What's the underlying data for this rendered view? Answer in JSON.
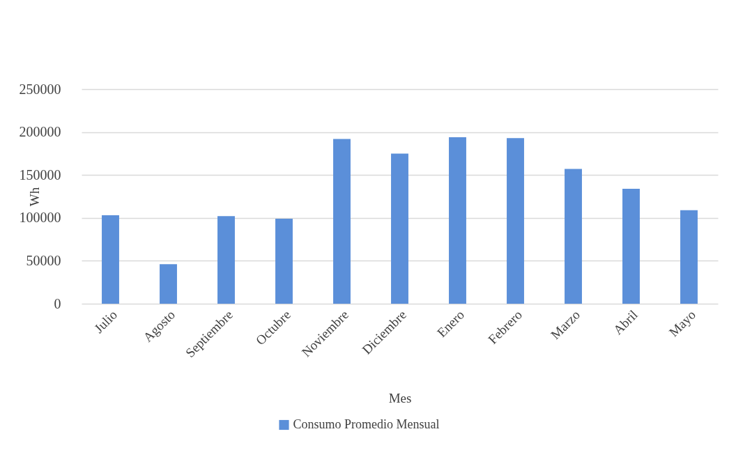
{
  "chart_data": {
    "type": "bar",
    "xlabel": "Mes",
    "ylabel": "Wh",
    "categories": [
      "Julio",
      "Agosto",
      "Septiembre",
      "Octubre",
      "Noviembre",
      "Diciembre",
      "Enero",
      "Febrero",
      "Marzo",
      "Abril",
      "Mayo"
    ],
    "series": [
      {
        "name": "Consumo Promedio Mensual",
        "color": "#5b8fd9",
        "values": [
          103000,
          46000,
          102000,
          99000,
          192000,
          175000,
          194000,
          193000,
          157000,
          134000,
          109000
        ]
      }
    ],
    "ylim": [
      0,
      250000
    ],
    "yticks": [
      0,
      50000,
      100000,
      150000,
      200000,
      250000
    ],
    "grid": "y",
    "legend": "bottom"
  }
}
